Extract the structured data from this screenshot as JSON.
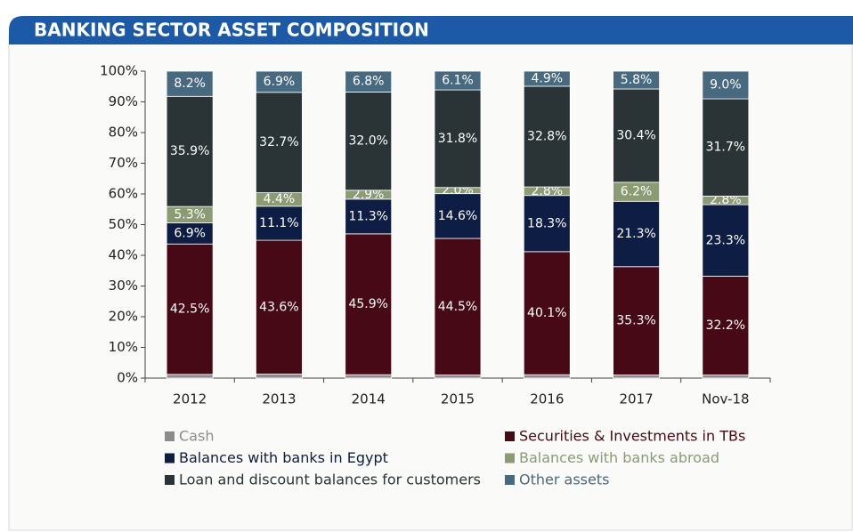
{
  "chart_data": {
    "type": "stacked_bar",
    "title": "BANKING SECTOR ASSET  COMPOSITION",
    "categories": [
      "2012",
      "2013",
      "2014",
      "2015",
      "2016",
      "2017",
      "Nov-18"
    ],
    "series": [
      {
        "name": "Cash",
        "color": "#8c8c8c",
        "values": [
          1.2,
          1.3,
          1.1,
          1.0,
          1.1,
          1.0,
          1.0
        ]
      },
      {
        "name": "Securities & Investments in TBs",
        "color": "#470915",
        "values": [
          42.5,
          43.6,
          45.9,
          44.5,
          40.1,
          35.3,
          32.2
        ],
        "value_labels": [
          "42.5%",
          "43.6%",
          "45.9%",
          "44.5%",
          "40.1%",
          "35.3%",
          "32.2%"
        ]
      },
      {
        "name": "Balances with banks in Egypt",
        "color": "#0e1d44",
        "values": [
          6.9,
          11.1,
          11.3,
          14.6,
          18.3,
          21.3,
          23.3
        ],
        "value_labels": [
          "6.9%",
          "11.1%",
          "11.3%",
          "14.6%",
          "18.3%",
          "21.3%",
          "23.3%"
        ]
      },
      {
        "name": "Balances with banks abroad",
        "color": "#8b9b72",
        "values": [
          5.3,
          4.4,
          2.9,
          2.0,
          2.8,
          6.2,
          2.8
        ],
        "value_labels": [
          "5.3%",
          "4.4%",
          "2.9%",
          "2.0%",
          "2.8%",
          "6.2%",
          "2.8%"
        ]
      },
      {
        "name": "Loan and discount balances for customers",
        "color": "#2a3335",
        "values": [
          35.9,
          32.7,
          32.0,
          31.8,
          32.8,
          30.4,
          31.7
        ],
        "value_labels": [
          "35.9%",
          "32.7%",
          "32.0%",
          "31.8%",
          "32.8%",
          "30.4%",
          "31.7%"
        ]
      },
      {
        "name": "Other assets",
        "color": "#476a80",
        "values": [
          8.2,
          6.9,
          6.8,
          6.1,
          4.9,
          5.8,
          9.0
        ],
        "value_labels": [
          "8.2%",
          "6.9%",
          "6.8%",
          "6.1%",
          "4.9%",
          "5.8%",
          "9.0%"
        ]
      }
    ],
    "ylim": [
      0,
      100
    ],
    "yticks": [
      {
        "value": 0,
        "label": "0%"
      },
      {
        "value": 10,
        "label": "10%"
      },
      {
        "value": 20,
        "label": "20%"
      },
      {
        "value": 30,
        "label": "30%"
      },
      {
        "value": 40,
        "label": "40%"
      },
      {
        "value": 50,
        "label": "50%"
      },
      {
        "value": 60,
        "label": "60%"
      },
      {
        "value": 70,
        "label": "70%"
      },
      {
        "value": 80,
        "label": "80%"
      },
      {
        "value": 90,
        "label": "90%"
      },
      {
        "value": 100,
        "label": "100%"
      }
    ],
    "legend": "bottom"
  }
}
